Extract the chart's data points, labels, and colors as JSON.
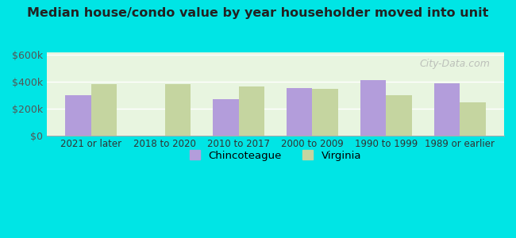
{
  "title": "Median house/condo value by year householder moved into unit",
  "categories": [
    "2021 or later",
    "2018 to 2020",
    "2010 to 2017",
    "2000 to 2009",
    "1990 to 1999",
    "1989 or earlier"
  ],
  "chincoteague": [
    300000,
    0,
    270000,
    355000,
    415000,
    390000
  ],
  "virginia": [
    385000,
    380000,
    365000,
    350000,
    300000,
    245000
  ],
  "chincoteague_color": "#b39ddb",
  "virginia_color": "#c5d5a0",
  "background_color": "#00e5e5",
  "ylabel_vals": [
    "$0",
    "$200k",
    "$400k",
    "$600k"
  ],
  "yticks": [
    0,
    200000,
    400000,
    600000
  ],
  "ylim": [
    0,
    620000
  ],
  "bar_width": 0.35,
  "legend_chincoteague": "Chincoteague",
  "legend_virginia": "Virginia",
  "watermark": "City-Data.com"
}
